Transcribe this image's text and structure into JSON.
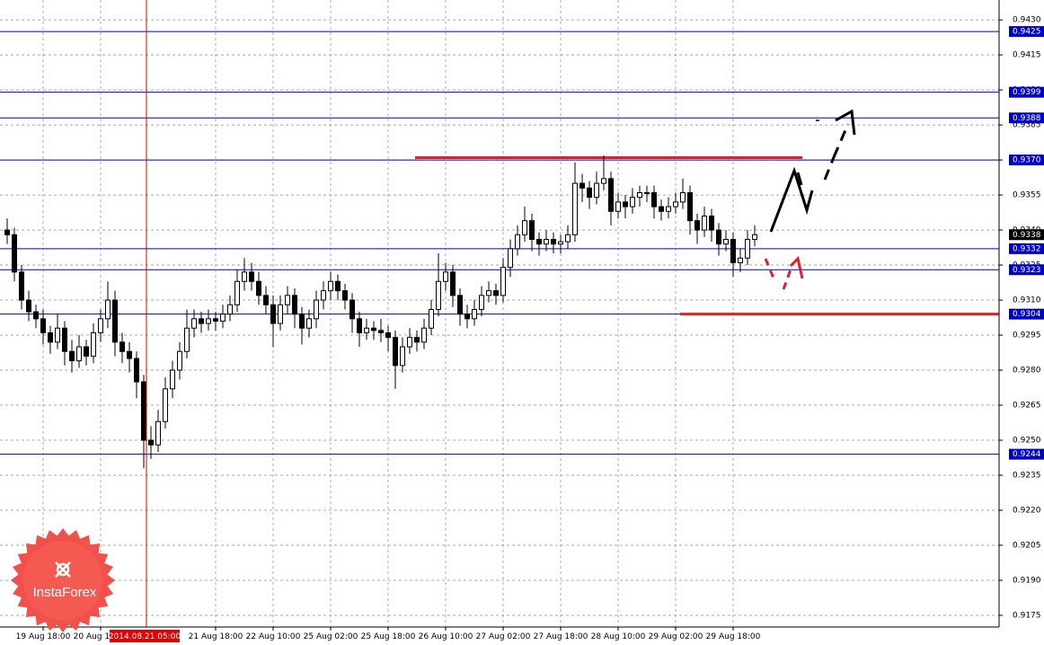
{
  "chart_data": {
    "type": "candlestick",
    "ylim": [
      0.917,
      0.94385
    ],
    "yticks": [
      {
        "value": 0.943,
        "label": "0.9430"
      },
      {
        "value": 0.9415,
        "label": "0.9415"
      },
      {
        "value": 0.94,
        "label": "0.9400"
      },
      {
        "value": 0.9385,
        "label": "0.9385"
      },
      {
        "value": 0.937,
        "label": "0.9370"
      },
      {
        "value": 0.9355,
        "label": "0.9355"
      },
      {
        "value": 0.934,
        "label": "0.9340"
      },
      {
        "value": 0.9325,
        "label": "0.9325"
      },
      {
        "value": 0.931,
        "label": "0.9310"
      },
      {
        "value": 0.9295,
        "label": "0.9295"
      },
      {
        "value": 0.928,
        "label": "0.9280"
      },
      {
        "value": 0.9265,
        "label": "0.9265"
      },
      {
        "value": 0.925,
        "label": "0.9250"
      },
      {
        "value": 0.9235,
        "label": "0.9235"
      },
      {
        "value": 0.922,
        "label": "0.9220"
      },
      {
        "value": 0.9205,
        "label": "0.9205"
      },
      {
        "value": 0.919,
        "label": "0.9190"
      },
      {
        "value": 0.9175,
        "label": "0.9175"
      }
    ],
    "grid": true,
    "candle_color": "#000000",
    "level_color": "#0000c8",
    "support_color": "#e0202a",
    "levels": [
      {
        "value": 0.9425,
        "label": "0.9425"
      },
      {
        "value": 0.9399,
        "label": "0.9399"
      },
      {
        "value": 0.9388,
        "label": "0.9388"
      },
      {
        "value": 0.937,
        "label": "0.9370"
      },
      {
        "value": 0.9332,
        "label": "0.9332"
      },
      {
        "value": 0.9323,
        "label": "0.9323"
      },
      {
        "value": 0.9304,
        "label": "0.9304"
      },
      {
        "value": 0.9244,
        "label": "0.9244"
      }
    ],
    "red_lines": [
      0.9371,
      0.9304
    ],
    "last_price": {
      "value": 0.9338,
      "label": "0.9338"
    },
    "crosshair_label": "2014.08.21 05:00",
    "logo": "InstaForex",
    "categories": [
      null,
      null,
      null,
      null,
      null,
      "19 Aug 18:00",
      null,
      null,
      null,
      null,
      null,
      null,
      null,
      "20 Aug 10:00",
      null,
      null,
      null,
      null,
      null,
      null,
      null,
      null,
      null,
      null,
      null,
      null,
      null,
      null,
      null,
      "21 Aug 18:00",
      null,
      null,
      null,
      null,
      null,
      null,
      null,
      "22 Aug 10:00",
      null,
      null,
      null,
      null,
      null,
      null,
      null,
      "25 Aug 02:00",
      null,
      null,
      null,
      null,
      null,
      null,
      null,
      "25 Aug 18:00",
      null,
      null,
      null,
      null,
      null,
      null,
      null,
      "26 Aug 10:00",
      null,
      null,
      null,
      null,
      null,
      null,
      null,
      "27 Aug 02:00",
      null,
      null,
      null,
      null,
      null,
      null,
      null,
      "27 Aug 18:00",
      null,
      null,
      null,
      null,
      null,
      null,
      null,
      "28 Aug 10:00",
      null,
      null,
      null,
      null,
      null,
      null,
      null,
      "29 Aug 02:00",
      null,
      null,
      null,
      null,
      null,
      null,
      null,
      "29 Aug 18:00",
      null,
      null,
      null
    ],
    "candles": [
      [
        0.934,
        0.9345,
        0.9334,
        0.9338
      ],
      [
        0.9338,
        0.9341,
        0.9318,
        0.9322
      ],
      [
        0.9322,
        0.9325,
        0.9306,
        0.931
      ],
      [
        0.931,
        0.9314,
        0.9301,
        0.9305
      ],
      [
        0.9305,
        0.9308,
        0.9298,
        0.9302
      ],
      [
        0.9302,
        0.9306,
        0.9291,
        0.9296
      ],
      [
        0.9296,
        0.9299,
        0.9287,
        0.9292
      ],
      [
        0.9292,
        0.9304,
        0.9289,
        0.9298
      ],
      [
        0.9298,
        0.9301,
        0.9282,
        0.9288
      ],
      [
        0.9288,
        0.9293,
        0.9279,
        0.9284
      ],
      [
        0.9284,
        0.9295,
        0.9281,
        0.929
      ],
      [
        0.929,
        0.9293,
        0.9282,
        0.9286
      ],
      [
        0.9286,
        0.93,
        0.9283,
        0.9296
      ],
      [
        0.9296,
        0.9306,
        0.9292,
        0.9302
      ],
      [
        0.9302,
        0.9318,
        0.9298,
        0.931
      ],
      [
        0.931,
        0.9314,
        0.9286,
        0.9292
      ],
      [
        0.9292,
        0.9296,
        0.9283,
        0.9288
      ],
      [
        0.9288,
        0.9292,
        0.9279,
        0.9285
      ],
      [
        0.9285,
        0.9288,
        0.9268,
        0.9275
      ],
      [
        0.9275,
        0.9278,
        0.9238,
        0.925
      ],
      [
        0.925,
        0.9256,
        0.9242,
        0.9248
      ],
      [
        0.9248,
        0.9263,
        0.9245,
        0.9258
      ],
      [
        0.9258,
        0.9277,
        0.9255,
        0.9272
      ],
      [
        0.9272,
        0.9284,
        0.9268,
        0.928
      ],
      [
        0.928,
        0.9292,
        0.9276,
        0.9288
      ],
      [
        0.9288,
        0.9306,
        0.9285,
        0.9298
      ],
      [
        0.9298,
        0.9306,
        0.9294,
        0.9302
      ],
      [
        0.9302,
        0.9305,
        0.9296,
        0.93
      ],
      [
        0.93,
        0.9306,
        0.9297,
        0.9302
      ],
      [
        0.9302,
        0.9305,
        0.9297,
        0.9301
      ],
      [
        0.9301,
        0.9308,
        0.9298,
        0.9304
      ],
      [
        0.9304,
        0.9312,
        0.9301,
        0.9308
      ],
      [
        0.9308,
        0.9323,
        0.9305,
        0.9318
      ],
      [
        0.9318,
        0.9328,
        0.9314,
        0.9322
      ],
      [
        0.9322,
        0.9326,
        0.9314,
        0.9318
      ],
      [
        0.9318,
        0.9322,
        0.9308,
        0.9312
      ],
      [
        0.9312,
        0.9316,
        0.9304,
        0.9308
      ],
      [
        0.9308,
        0.9312,
        0.929,
        0.93
      ],
      [
        0.93,
        0.9312,
        0.9297,
        0.9308
      ],
      [
        0.9308,
        0.9316,
        0.9304,
        0.9312
      ],
      [
        0.9312,
        0.9315,
        0.9298,
        0.9304
      ],
      [
        0.9304,
        0.9307,
        0.9291,
        0.9298
      ],
      [
        0.9298,
        0.9306,
        0.9294,
        0.9302
      ],
      [
        0.9302,
        0.9314,
        0.9298,
        0.931
      ],
      [
        0.931,
        0.9318,
        0.9306,
        0.9314
      ],
      [
        0.9314,
        0.9322,
        0.931,
        0.9318
      ],
      [
        0.9318,
        0.9321,
        0.931,
        0.9314
      ],
      [
        0.9314,
        0.9317,
        0.9306,
        0.931
      ],
      [
        0.931,
        0.9313,
        0.9296,
        0.9302
      ],
      [
        0.9302,
        0.9305,
        0.929,
        0.9296
      ],
      [
        0.9296,
        0.9302,
        0.9293,
        0.9298
      ],
      [
        0.9298,
        0.9301,
        0.9293,
        0.9297
      ],
      [
        0.9297,
        0.9302,
        0.9292,
        0.9296
      ],
      [
        0.9296,
        0.9299,
        0.9288,
        0.9294
      ],
      [
        0.9294,
        0.9297,
        0.9272,
        0.9282
      ],
      [
        0.9282,
        0.9294,
        0.9279,
        0.929
      ],
      [
        0.929,
        0.9298,
        0.9287,
        0.9294
      ],
      [
        0.9294,
        0.9297,
        0.9288,
        0.9292
      ],
      [
        0.9292,
        0.9302,
        0.9289,
        0.9298
      ],
      [
        0.9298,
        0.931,
        0.9295,
        0.9306
      ],
      [
        0.9306,
        0.933,
        0.9303,
        0.9318
      ],
      [
        0.9318,
        0.9326,
        0.9314,
        0.9322
      ],
      [
        0.9322,
        0.9325,
        0.9307,
        0.9312
      ],
      [
        0.9312,
        0.9315,
        0.9299,
        0.9304
      ],
      [
        0.9304,
        0.9308,
        0.9298,
        0.9302
      ],
      [
        0.9302,
        0.931,
        0.9299,
        0.9306
      ],
      [
        0.9306,
        0.9316,
        0.9303,
        0.9312
      ],
      [
        0.9312,
        0.9318,
        0.9309,
        0.9314
      ],
      [
        0.9314,
        0.9317,
        0.9308,
        0.9312
      ],
      [
        0.9312,
        0.9328,
        0.9309,
        0.9324
      ],
      [
        0.9324,
        0.9336,
        0.932,
        0.9332
      ],
      [
        0.9332,
        0.9342,
        0.9329,
        0.9338
      ],
      [
        0.9338,
        0.935,
        0.9335,
        0.9344
      ],
      [
        0.9344,
        0.9347,
        0.9331,
        0.9336
      ],
      [
        0.9336,
        0.9339,
        0.9329,
        0.9334
      ],
      [
        0.9334,
        0.934,
        0.9331,
        0.9336
      ],
      [
        0.9336,
        0.9339,
        0.933,
        0.9334
      ],
      [
        0.9334,
        0.9338,
        0.933,
        0.9335
      ],
      [
        0.9335,
        0.9342,
        0.9332,
        0.9338
      ],
      [
        0.9338,
        0.9369,
        0.9335,
        0.936
      ],
      [
        0.936,
        0.9364,
        0.9352,
        0.9358
      ],
      [
        0.9358,
        0.9361,
        0.9349,
        0.9354
      ],
      [
        0.9354,
        0.9365,
        0.9351,
        0.936
      ],
      [
        0.936,
        0.9372,
        0.9357,
        0.9362
      ],
      [
        0.9362,
        0.9365,
        0.9342,
        0.9348
      ],
      [
        0.9348,
        0.9356,
        0.9345,
        0.9352
      ],
      [
        0.9352,
        0.9355,
        0.9345,
        0.935
      ],
      [
        0.935,
        0.9358,
        0.9347,
        0.9354
      ],
      [
        0.9354,
        0.9359,
        0.935,
        0.9356
      ],
      [
        0.9356,
        0.9359,
        0.9352,
        0.9356
      ],
      [
        0.9356,
        0.9359,
        0.9345,
        0.935
      ],
      [
        0.935,
        0.9353,
        0.9344,
        0.9348
      ],
      [
        0.9348,
        0.9354,
        0.9345,
        0.935
      ],
      [
        0.935,
        0.9356,
        0.9347,
        0.9352
      ],
      [
        0.9352,
        0.9362,
        0.9349,
        0.9356
      ],
      [
        0.9356,
        0.9359,
        0.9338,
        0.9344
      ],
      [
        0.9344,
        0.9347,
        0.9334,
        0.934
      ],
      [
        0.934,
        0.935,
        0.9337,
        0.9346
      ],
      [
        0.9346,
        0.9349,
        0.9335,
        0.934
      ],
      [
        0.934,
        0.9343,
        0.9329,
        0.9334
      ],
      [
        0.9334,
        0.934,
        0.9331,
        0.9336
      ],
      [
        0.9336,
        0.9339,
        0.932,
        0.9326
      ],
      [
        0.9326,
        0.9332,
        0.9322,
        0.9328
      ],
      [
        0.9328,
        0.934,
        0.9325,
        0.9336
      ],
      [
        0.9336,
        0.9342,
        0.9333,
        0.9338
      ]
    ]
  }
}
